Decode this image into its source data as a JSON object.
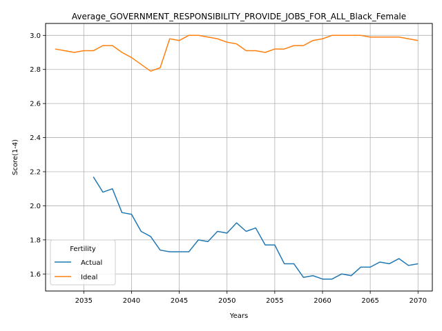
{
  "chart_data": {
    "type": "line",
    "title": "Average_GOVERNMENT_RESPONSIBILITY_PROVIDE_JOBS_FOR_ALL_Black_Female",
    "xlabel": "Years",
    "ylabel": "Score(1-4)",
    "xlim": [
      2031,
      2071.5
    ],
    "ylim": [
      1.5,
      3.07
    ],
    "xticks": [
      2035,
      2040,
      2045,
      2050,
      2055,
      2060,
      2065,
      2070
    ],
    "yticks": [
      1.6,
      1.8,
      2.0,
      2.2,
      2.4,
      2.6,
      2.8,
      3.0
    ],
    "grid": true,
    "legend": {
      "title": "Fertility",
      "placement": "lower-left"
    },
    "series": [
      {
        "name": "Actual",
        "color": "#1f77b4",
        "x": [
          2036,
          2037,
          2038,
          2039,
          2040,
          2041,
          2042,
          2043,
          2044,
          2045,
          2046,
          2047,
          2048,
          2049,
          2050,
          2051,
          2052,
          2053,
          2054,
          2055,
          2056,
          2057,
          2058,
          2059,
          2060,
          2061,
          2062,
          2063,
          2064,
          2065,
          2066,
          2067,
          2068,
          2069,
          2070
        ],
        "values": [
          2.17,
          2.08,
          2.1,
          1.96,
          1.95,
          1.85,
          1.82,
          1.74,
          1.73,
          1.73,
          1.73,
          1.8,
          1.79,
          1.85,
          1.84,
          1.9,
          1.85,
          1.87,
          1.77,
          1.77,
          1.66,
          1.66,
          1.58,
          1.59,
          1.57,
          1.57,
          1.6,
          1.59,
          1.64,
          1.64,
          1.67,
          1.66,
          1.69,
          1.65,
          1.66
        ]
      },
      {
        "name": "Ideal",
        "color": "#ff7f0e",
        "x": [
          2032,
          2033,
          2034,
          2035,
          2036,
          2037,
          2038,
          2039,
          2040,
          2041,
          2042,
          2043,
          2044,
          2045,
          2046,
          2047,
          2048,
          2049,
          2050,
          2051,
          2052,
          2053,
          2054,
          2055,
          2056,
          2057,
          2058,
          2059,
          2060,
          2061,
          2062,
          2063,
          2064,
          2065,
          2066,
          2067,
          2068,
          2069,
          2070
        ],
        "values": [
          2.92,
          2.91,
          2.9,
          2.91,
          2.91,
          2.94,
          2.94,
          2.9,
          2.87,
          2.83,
          2.79,
          2.81,
          2.98,
          2.97,
          3.0,
          3.0,
          2.99,
          2.98,
          2.96,
          2.95,
          2.91,
          2.91,
          2.9,
          2.92,
          2.92,
          2.94,
          2.94,
          2.97,
          2.98,
          3.0,
          3.0,
          3.0,
          3.0,
          2.99,
          2.99,
          2.99,
          2.99,
          2.98,
          2.97
        ]
      }
    ]
  }
}
